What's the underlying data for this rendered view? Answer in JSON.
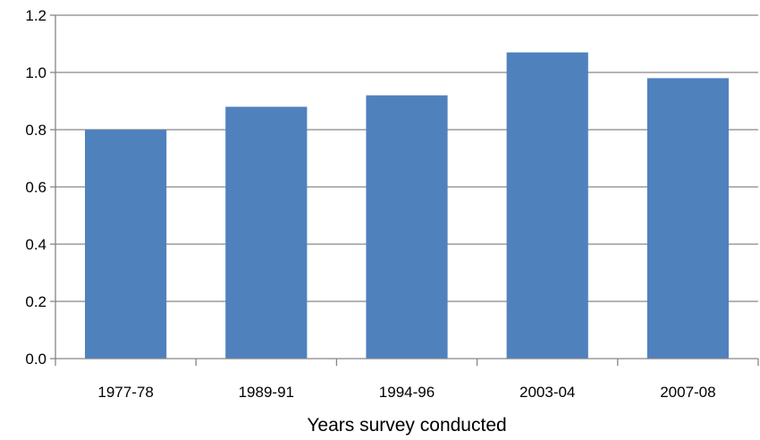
{
  "chart_data": {
    "type": "bar",
    "title": "",
    "xlabel": "Years survey conducted",
    "ylabel": "",
    "categories": [
      "1977-78",
      "1989-91",
      "1994-96",
      "2003-04",
      "2007-08"
    ],
    "values": [
      0.8,
      0.88,
      0.92,
      1.07,
      0.98
    ],
    "ylim": [
      0,
      1.2
    ],
    "yticks": [
      "0.0",
      "0.2",
      "0.4",
      "0.6",
      "0.8",
      "1.0",
      "1.2"
    ],
    "grid": true,
    "legend": "none",
    "colors": {
      "bar": "#4F81BD",
      "grid": "#868686",
      "axis": "#868686"
    }
  }
}
